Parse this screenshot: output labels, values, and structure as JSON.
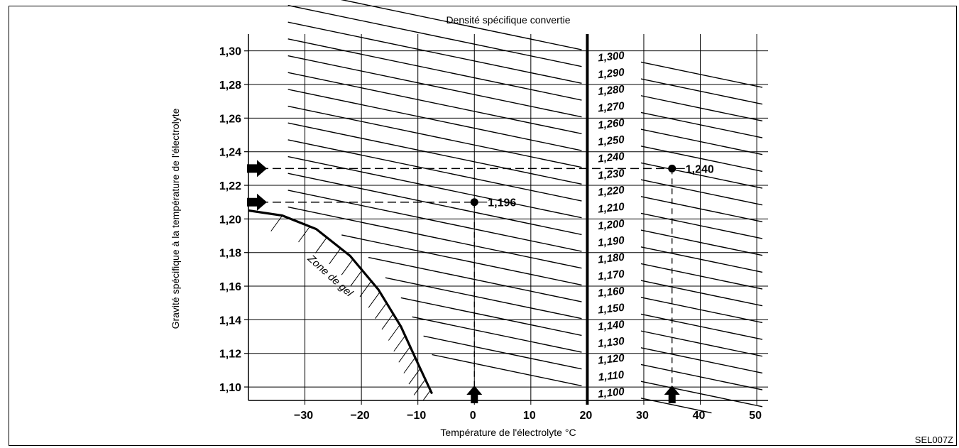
{
  "chart_data": {
    "type": "line",
    "title": "Densité spécifique convertie",
    "xlabel": "Température de l'électrolyte °C",
    "ylabel": "Gravité spécifique à la température de l'électrolyte",
    "xlim": [
      -40,
      52
    ],
    "ylim": [
      1.092,
      1.31
    ],
    "x_ticks": [
      -30,
      -20,
      -10,
      0,
      10,
      20,
      30,
      40,
      50
    ],
    "x_tick_labels": [
      "−30",
      "−20",
      "−10",
      "0",
      "10",
      "20",
      "30",
      "40",
      "50"
    ],
    "y_ticks": [
      1.1,
      1.12,
      1.14,
      1.16,
      1.18,
      1.2,
      1.22,
      1.24,
      1.26,
      1.28,
      1.3
    ],
    "y_tick_labels": [
      "1,10",
      "1,12",
      "1,14",
      "1,16",
      "1,18",
      "1,20",
      "1,22",
      "1,24",
      "1,26",
      "1,28",
      "1,30"
    ],
    "reference_temperature": 20,
    "slope_per_degC": -0.0007,
    "series": [
      {
        "name": "1,300",
        "value": 1.3
      },
      {
        "name": "1,290",
        "value": 1.29
      },
      {
        "name": "1,280",
        "value": 1.28
      },
      {
        "name": "1,270",
        "value": 1.27
      },
      {
        "name": "1,260",
        "value": 1.26
      },
      {
        "name": "1,250",
        "value": 1.25
      },
      {
        "name": "1,240",
        "value": 1.24
      },
      {
        "name": "1,230",
        "value": 1.23
      },
      {
        "name": "1,220",
        "value": 1.22
      },
      {
        "name": "1,210",
        "value": 1.21
      },
      {
        "name": "1,200",
        "value": 1.2
      },
      {
        "name": "1,190",
        "value": 1.19
      },
      {
        "name": "1,180",
        "value": 1.18
      },
      {
        "name": "1,170",
        "value": 1.17
      },
      {
        "name": "1,160",
        "value": 1.16
      },
      {
        "name": "1,150",
        "value": 1.15
      },
      {
        "name": "1,140",
        "value": 1.14
      },
      {
        "name": "1,130",
        "value": 1.13
      },
      {
        "name": "1,120",
        "value": 1.12
      },
      {
        "name": "1,110",
        "value": 1.11
      },
      {
        "name": "1,100",
        "value": 1.1
      }
    ],
    "freeze_zone": {
      "label": "Zone de gel",
      "boundary": [
        [
          -40,
          1.205
        ],
        [
          -34,
          1.202
        ],
        [
          -28,
          1.194
        ],
        [
          -22,
          1.178
        ],
        [
          -17,
          1.158
        ],
        [
          -13,
          1.136
        ],
        [
          -10,
          1.114
        ],
        [
          -7.5,
          1.096
        ]
      ]
    },
    "examples": [
      {
        "temp": 0,
        "measured": 1.21,
        "converted_label": "1,196"
      },
      {
        "temp": 35,
        "measured": 1.23,
        "converted_label": "1,240"
      }
    ],
    "grid": true
  },
  "reference_code": "SEL007Z"
}
